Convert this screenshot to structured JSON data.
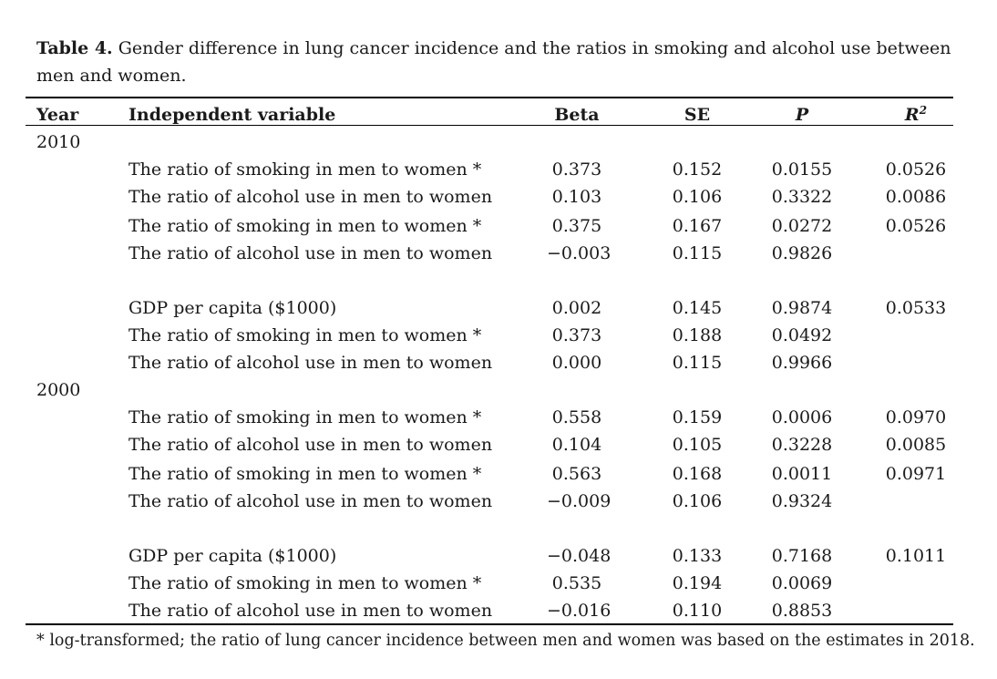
{
  "caption": {
    "label": "Table 4.",
    "text": "Gender difference in lung cancer incidence and the ratios in smoking and alcohol use between men and women."
  },
  "headers": {
    "year": "Year",
    "variable": "Independent variable",
    "beta": "Beta",
    "se": "SE",
    "p": "P",
    "r2_base": "R",
    "r2_sup": "2"
  },
  "years": [
    "2010",
    "2000"
  ],
  "rows_2010": [
    {
      "variable": "The ratio of smoking in men to women *",
      "beta": "0.373",
      "se": "0.152",
      "p": "0.0155",
      "r2": "0.0526"
    },
    {
      "variable": "The ratio of alcohol use in men to women",
      "beta": "0.103",
      "se": "0.106",
      "p": "0.3322",
      "r2": "0.0086"
    },
    {
      "variable": "The ratio of smoking in men to women *",
      "beta": "0.375",
      "se": "0.167",
      "p": "0.0272",
      "r2": "0.0526"
    },
    {
      "variable": "The ratio of alcohol use in men to women",
      "beta": "−0.003",
      "se": "0.115",
      "p": "0.9826",
      "r2": ""
    },
    {
      "variable": "GDP per capita ($1000)",
      "beta": "0.002",
      "se": "0.145",
      "p": "0.9874",
      "r2": "0.0533"
    },
    {
      "variable": "The ratio of smoking in men to women *",
      "beta": "0.373",
      "se": "0.188",
      "p": "0.0492",
      "r2": ""
    },
    {
      "variable": "The ratio of alcohol use in men to women",
      "beta": "0.000",
      "se": "0.115",
      "p": "0.9966",
      "r2": ""
    }
  ],
  "rows_2000": [
    {
      "variable": "The ratio of smoking in men to women *",
      "beta": "0.558",
      "se": "0.159",
      "p": "0.0006",
      "r2": "0.0970"
    },
    {
      "variable": "The ratio of alcohol use in men to women",
      "beta": "0.104",
      "se": "0.105",
      "p": "0.3228",
      "r2": "0.0085"
    },
    {
      "variable": "The ratio of smoking in men to women *",
      "beta": "0.563",
      "se": "0.168",
      "p": "0.0011",
      "r2": "0.0971"
    },
    {
      "variable": "The ratio of alcohol use in men to women",
      "beta": "−0.009",
      "se": "0.106",
      "p": "0.9324",
      "r2": ""
    },
    {
      "variable": "GDP per capita ($1000)",
      "beta": "−0.048",
      "se": "0.133",
      "p": "0.7168",
      "r2": "0.1011"
    },
    {
      "variable": "The ratio of smoking in men to women *",
      "beta": "0.535",
      "se": "0.194",
      "p": "0.0069",
      "r2": ""
    },
    {
      "variable": "The ratio of alcohol use in men to women",
      "beta": "−0.016",
      "se": "0.110",
      "p": "0.8853",
      "r2": ""
    }
  ],
  "footnote": "* log-transformed; the ratio of lung cancer incidence between men and women was based on the estimates in 2018."
}
